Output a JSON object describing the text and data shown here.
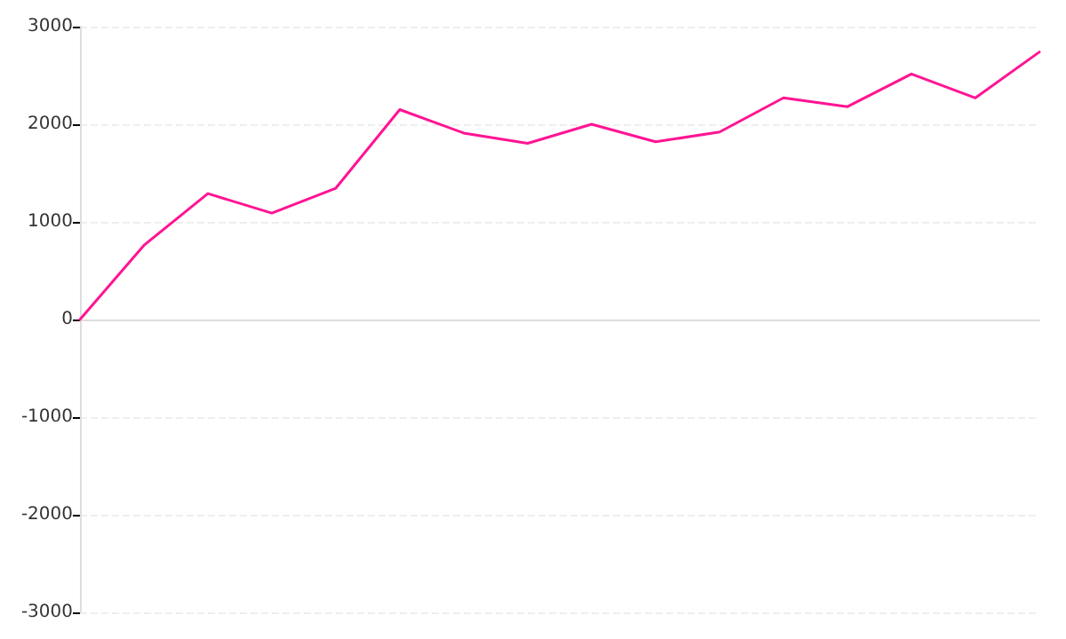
{
  "chart_data": {
    "type": "line",
    "categories": [
      null,
      null,
      null,
      null,
      null,
      null,
      null,
      null,
      null,
      null,
      null,
      null,
      null,
      null,
      null,
      null
    ],
    "series": [
      {
        "color": "#ff1493",
        "values": [
          0,
          760,
          1290,
          1090,
          1345,
          2150,
          1910,
          1805,
          2000,
          1820,
          1920,
          2270,
          2180,
          2515,
          2270,
          2740
        ]
      }
    ],
    "ylim": [
      -3000,
      3000
    ],
    "yticks": [
      -3000,
      -2000,
      -1000,
      0,
      1000,
      2000,
      3000
    ],
    "grid": "y",
    "tick_labels": "y",
    "marker": "none",
    "line_style": "solid"
  }
}
